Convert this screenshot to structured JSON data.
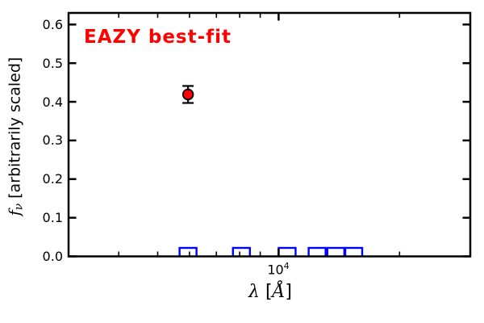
{
  "figure": {
    "background": "#ffffff",
    "annotation": {
      "text": "EAZY best-fit",
      "color": "#ff0000"
    },
    "xlabel": {
      "lambda": "λ",
      "open_bracket": " [",
      "angstrom": "Å",
      "close_bracket": "]"
    },
    "ylabel": {
      "f": "f",
      "sub": "ν",
      "rest": " [arbitrarily scaled]"
    },
    "xtick_label": {
      "base": "10",
      "exp": "4"
    }
  },
  "chart_data": {
    "type": "scatter",
    "title": "",
    "xlabel": "λ [Å]",
    "ylabel": "f_ν [arbitrarily scaled]",
    "xscale": "log",
    "xlim": [
      3000,
      30000
    ],
    "ylim": [
      0,
      0.63
    ],
    "grid": false,
    "legend": null,
    "annotation": {
      "text": "EAZY best-fit",
      "color": "#ff0000"
    },
    "x_major_ticks": [
      {
        "value": 10000,
        "label": "10^4"
      }
    ],
    "x_minor_ticks": [
      4000,
      5000,
      6000,
      7000,
      8000,
      9000,
      20000
    ],
    "y_ticks": [
      {
        "value": 0.0,
        "label": "0.0"
      },
      {
        "value": 0.1,
        "label": "0.1"
      },
      {
        "value": 0.2,
        "label": "0.2"
      },
      {
        "value": 0.3,
        "label": "0.3"
      },
      {
        "value": 0.4,
        "label": "0.4"
      },
      {
        "value": 0.5,
        "label": "0.5"
      },
      {
        "value": 0.6,
        "label": "0.6"
      }
    ],
    "series": [
      {
        "name": "eazy-best-fit-point",
        "marker": "circle",
        "color": "#ff0000",
        "edge_color": "#000000",
        "points": [
          {
            "x": 5950,
            "y": 0.419,
            "yerr": 0.022
          }
        ]
      },
      {
        "name": "photometry-squares",
        "marker": "open-square",
        "color": "#0000ff",
        "points": [
          {
            "x": 5950,
            "y": 0.0
          },
          {
            "x": 8080,
            "y": 0.0
          },
          {
            "x": 10500,
            "y": 0.0
          },
          {
            "x": 12470,
            "y": 0.0
          },
          {
            "x": 13880,
            "y": 0.0
          },
          {
            "x": 15380,
            "y": 0.0
          }
        ]
      }
    ]
  }
}
